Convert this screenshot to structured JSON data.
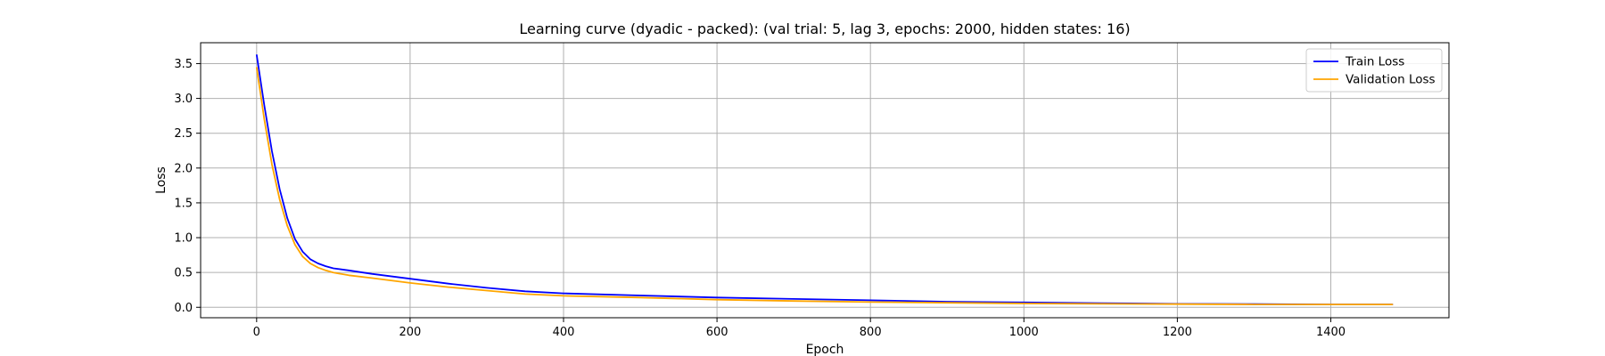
{
  "chart_data": {
    "type": "line",
    "title": "Learning curve (dyadic - packed): (val trial: 5, lag 3, epochs: 2000, hidden states: 16)",
    "xlabel": "Epoch",
    "ylabel": "Loss",
    "xlim": [
      -73,
      1554
    ],
    "ylim": [
      -0.15,
      3.8
    ],
    "xticks": [
      0,
      200,
      400,
      600,
      800,
      1000,
      1200,
      1400
    ],
    "yticks": [
      0.0,
      0.5,
      1.0,
      1.5,
      2.0,
      2.5,
      3.0,
      3.5
    ],
    "xtick_labels": [
      "0",
      "200",
      "400",
      "600",
      "800",
      "1000",
      "1200",
      "1400"
    ],
    "ytick_labels": [
      "0.0",
      "0.5",
      "1.0",
      "1.5",
      "2.0",
      "2.5",
      "3.0",
      "3.5"
    ],
    "grid": true,
    "legend_position": "top-right",
    "series": [
      {
        "name": "Train Loss",
        "color": "#0000ff",
        "x": [
          0,
          10,
          20,
          30,
          40,
          50,
          60,
          70,
          80,
          90,
          100,
          120,
          150,
          200,
          250,
          300,
          350,
          400,
          500,
          600,
          700,
          800,
          900,
          1000,
          1100,
          1200,
          1300,
          1400,
          1481
        ],
        "y": [
          3.63,
          2.9,
          2.24,
          1.7,
          1.28,
          0.98,
          0.8,
          0.69,
          0.63,
          0.59,
          0.56,
          0.53,
          0.48,
          0.41,
          0.34,
          0.28,
          0.23,
          0.2,
          0.17,
          0.14,
          0.12,
          0.1,
          0.08,
          0.07,
          0.06,
          0.05,
          0.045,
          0.04,
          0.04
        ]
      },
      {
        "name": "Validation Loss",
        "color": "#ffa500",
        "x": [
          0,
          10,
          20,
          30,
          40,
          50,
          60,
          70,
          80,
          90,
          100,
          120,
          150,
          200,
          250,
          300,
          350,
          400,
          500,
          600,
          700,
          800,
          900,
          1000,
          1100,
          1200,
          1300,
          1400,
          1481
        ],
        "y": [
          3.45,
          2.7,
          2.05,
          1.55,
          1.17,
          0.9,
          0.73,
          0.63,
          0.57,
          0.53,
          0.5,
          0.46,
          0.42,
          0.35,
          0.29,
          0.24,
          0.19,
          0.165,
          0.14,
          0.11,
          0.09,
          0.075,
          0.065,
          0.055,
          0.05,
          0.045,
          0.04,
          0.04,
          0.04
        ]
      }
    ]
  }
}
